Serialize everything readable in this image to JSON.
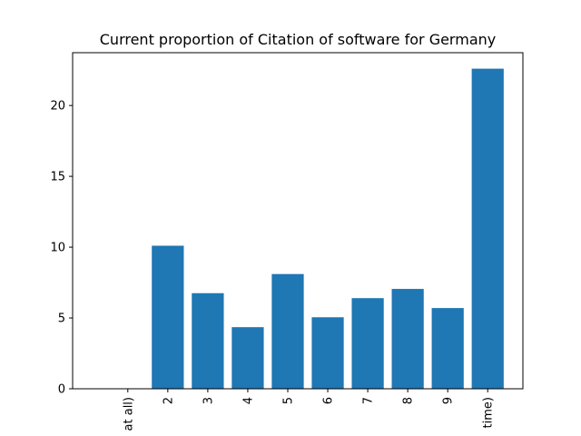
{
  "chart_data": {
    "type": "bar",
    "title": "Current proportion of Citation of software for Germany",
    "xlabel": "",
    "ylabel": "",
    "categories": [
      "at all)",
      "2",
      "3",
      "4",
      "5",
      "6",
      "7",
      "8",
      "9",
      "time)"
    ],
    "values": [
      0,
      10.1,
      6.75,
      4.35,
      8.1,
      5.05,
      6.4,
      7.05,
      5.7,
      22.6
    ],
    "ylim": [
      0,
      23.73
    ],
    "yticks": [
      0,
      5,
      10,
      15,
      20
    ],
    "grid": false,
    "bar_color": "#1f77b4"
  }
}
